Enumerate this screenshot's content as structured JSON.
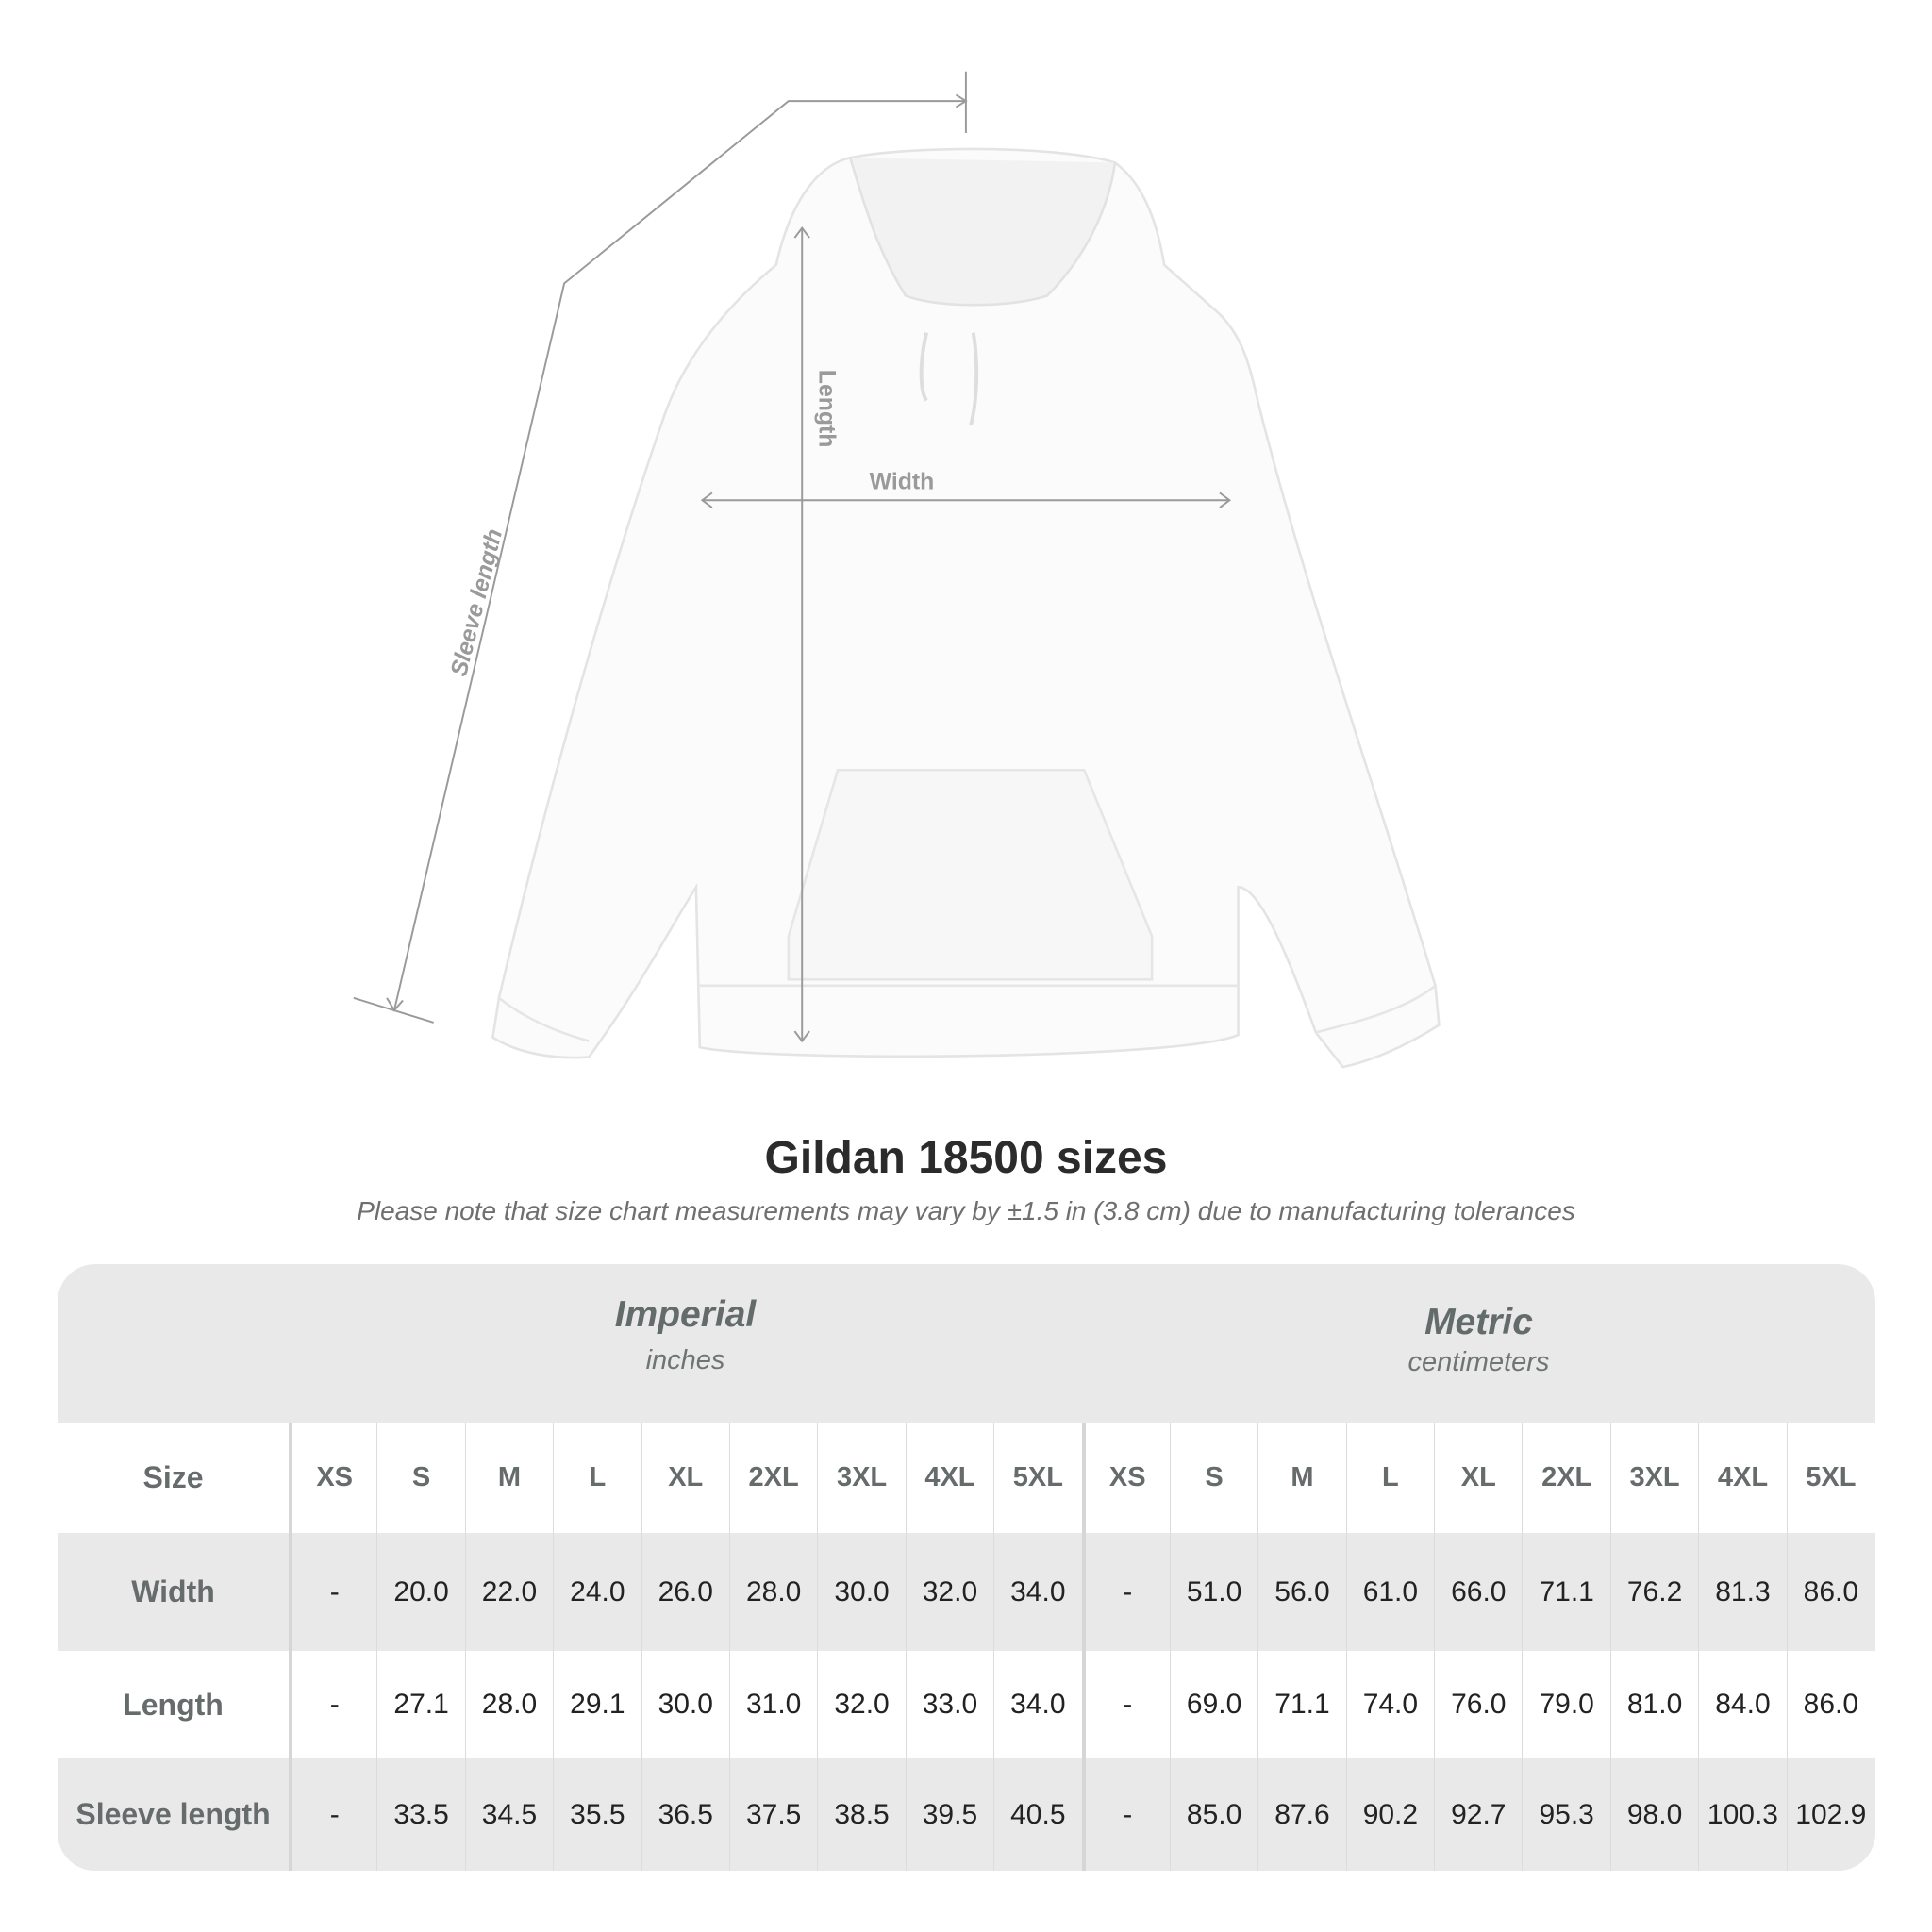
{
  "diagram": {
    "labels": {
      "sleeve_length": "Sleeve length",
      "length": "Length",
      "width": "Width"
    }
  },
  "title": "Gildan 18500 sizes",
  "note": "Please note that size chart measurements may vary by ±1.5 in (3.8 cm) due to manufacturing tolerances",
  "table": {
    "imperial": {
      "title": "Imperial",
      "unit": "inches"
    },
    "metric": {
      "title": "Metric",
      "unit": "centimeters"
    },
    "size_label": "Size",
    "sizes": [
      "XS",
      "S",
      "M",
      "L",
      "XL",
      "2XL",
      "3XL",
      "4XL",
      "5XL"
    ],
    "rows": [
      {
        "label": "Width",
        "imperial": [
          "-",
          "20.0",
          "22.0",
          "24.0",
          "26.0",
          "28.0",
          "30.0",
          "32.0",
          "34.0"
        ],
        "metric": [
          "-",
          "51.0",
          "56.0",
          "61.0",
          "66.0",
          "71.1",
          "76.2",
          "81.3",
          "86.0"
        ]
      },
      {
        "label": "Length",
        "imperial": [
          "-",
          "27.1",
          "28.0",
          "29.1",
          "30.0",
          "31.0",
          "32.0",
          "33.0",
          "34.0"
        ],
        "metric": [
          "-",
          "69.0",
          "71.1",
          "74.0",
          "76.0",
          "79.0",
          "81.0",
          "84.0",
          "86.0"
        ]
      },
      {
        "label": "Sleeve length",
        "imperial": [
          "-",
          "33.5",
          "34.5",
          "35.5",
          "36.5",
          "37.5",
          "38.5",
          "39.5",
          "40.5"
        ],
        "metric": [
          "-",
          "85.0",
          "87.6",
          "90.2",
          "92.7",
          "95.3",
          "98.0",
          "100.3",
          "102.9"
        ]
      }
    ]
  },
  "colors": {
    "line": "#9a9a9a",
    "header_bg": "#e9e9e9",
    "label_text": "#666b6b"
  }
}
